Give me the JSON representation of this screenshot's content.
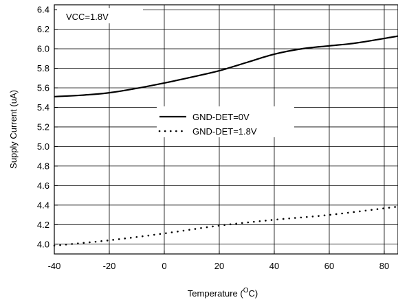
{
  "chart_data": {
    "type": "line",
    "title": "",
    "annotation": "VCC=1.8V",
    "xlabel": {
      "prefix": "Temperature (",
      "superscript": "O",
      "suffix": "C)"
    },
    "ylabel": "Supply Current (uA)",
    "xlim": [
      -40,
      85
    ],
    "ylim": [
      3.9,
      6.45
    ],
    "x_ticks": [
      -40,
      -20,
      0,
      20,
      40,
      60,
      80
    ],
    "x_tick_labels": [
      "-40",
      "-20",
      "0",
      "20",
      "40",
      "60",
      "80"
    ],
    "y_ticks": [
      4.0,
      4.2,
      4.4,
      4.6,
      4.8,
      5.0,
      5.2,
      5.4,
      5.6,
      5.8,
      6.0,
      6.2,
      6.4
    ],
    "y_tick_labels": [
      "4.0",
      "4.2",
      "4.4",
      "4.6",
      "4.8",
      "5.0",
      "5.2",
      "5.4",
      "5.6",
      "5.8",
      "6.0",
      "6.2",
      "6.4"
    ],
    "grid": true,
    "legend_position": "center",
    "series": [
      {
        "name": "GND-DET=0V",
        "style": "solid",
        "x": [
          -40,
          -30,
          -20,
          -10,
          0,
          10,
          20,
          30,
          40,
          50,
          60,
          70,
          85
        ],
        "y": [
          5.51,
          5.525,
          5.55,
          5.595,
          5.65,
          5.71,
          5.775,
          5.86,
          5.945,
          6.0,
          6.03,
          6.06,
          6.13
        ]
      },
      {
        "name": "GND-DET=1.8V",
        "style": "dotted",
        "x": [
          -40,
          -20,
          0,
          20,
          40,
          60,
          85
        ],
        "y": [
          3.985,
          4.04,
          4.11,
          4.19,
          4.25,
          4.3,
          4.385
        ]
      }
    ]
  }
}
